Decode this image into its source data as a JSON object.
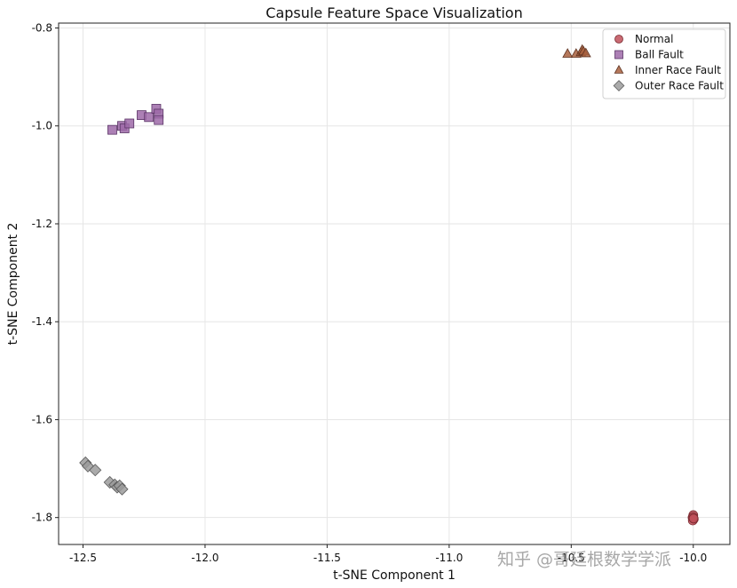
{
  "watermark": "知乎 @哥廷根数学学派",
  "chart_data": {
    "type": "scatter",
    "title": "Capsule Feature Space Visualization",
    "xlabel": "t-SNE Component 1",
    "ylabel": "t-SNE Component 2",
    "xlim": [
      -12.6,
      -9.85
    ],
    "ylim": [
      -1.855,
      -0.79
    ],
    "xticks": [
      -12.5,
      -12.0,
      -11.5,
      -11.0,
      -10.5,
      -10.0
    ],
    "xtick_labels": [
      "-12.5",
      "-12.0",
      "-11.5",
      "-11.0",
      "-10.5",
      "-10.0"
    ],
    "yticks": [
      -0.8,
      -1.0,
      -1.2,
      -1.4,
      -1.6,
      -1.8
    ],
    "ytick_labels": [
      "-0.8",
      "-1.0",
      "-1.2",
      "-1.4",
      "-1.6",
      "-1.8"
    ],
    "grid": true,
    "legend_position": "top-right",
    "series": [
      {
        "name": "Normal",
        "marker": "circle",
        "color": "#c0505a",
        "edge": "#7a2a30",
        "points": [
          [
            -10.0,
            -1.795
          ],
          [
            -10.003,
            -1.8
          ],
          [
            -9.998,
            -1.803
          ],
          [
            -10.002,
            -1.806
          ],
          [
            -10.0,
            -1.799
          ],
          [
            -9.999,
            -1.802
          ]
        ]
      },
      {
        "name": "Ball Fault",
        "marker": "square",
        "color": "#9e6aa8",
        "edge": "#5a3466",
        "points": [
          [
            -12.38,
            -1.008
          ],
          [
            -12.34,
            -1.0
          ],
          [
            -12.33,
            -1.005
          ],
          [
            -12.31,
            -0.995
          ],
          [
            -12.26,
            -0.978
          ],
          [
            -12.23,
            -0.982
          ],
          [
            -12.2,
            -0.965
          ],
          [
            -12.19,
            -0.975
          ],
          [
            -12.19,
            -0.988
          ]
        ]
      },
      {
        "name": "Inner Race Fault",
        "marker": "triangle",
        "color": "#a8603e",
        "edge": "#5e3220",
        "points": [
          [
            -10.515,
            -0.853
          ],
          [
            -10.48,
            -0.853
          ],
          [
            -10.46,
            -0.85
          ],
          [
            -10.455,
            -0.845
          ],
          [
            -10.45,
            -0.848
          ],
          [
            -10.44,
            -0.852
          ]
        ]
      },
      {
        "name": "Outer Race Fault",
        "marker": "diamond",
        "color": "#9b9b9b",
        "edge": "#5a5a5a",
        "points": [
          [
            -12.49,
            -1.688
          ],
          [
            -12.48,
            -1.695
          ],
          [
            -12.45,
            -1.703
          ],
          [
            -12.39,
            -1.728
          ],
          [
            -12.37,
            -1.733
          ],
          [
            -12.36,
            -1.738
          ],
          [
            -12.35,
            -1.735
          ],
          [
            -12.34,
            -1.742
          ]
        ]
      }
    ]
  }
}
